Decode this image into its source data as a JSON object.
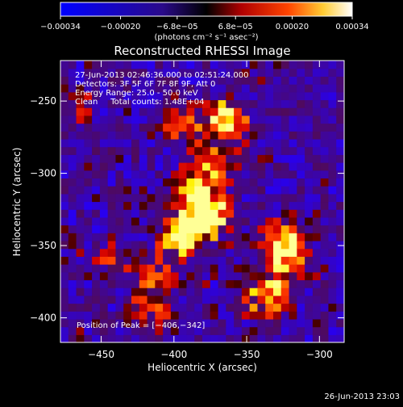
{
  "chart_data": {
    "type": "heatmap",
    "title": "Reconstructed RHESSI Image",
    "xlabel": "Heliocentric X (arcsec)",
    "ylabel": "Heliocentric Y (arcsec)",
    "xlim": [
      -478,
      -283
    ],
    "ylim": [
      -417,
      -222
    ],
    "xticks": [
      -450,
      -400,
      -350,
      -300
    ],
    "yticks": [
      -250,
      -300,
      -350,
      -400
    ],
    "colorbar": {
      "label": "(photons cm⁻² s⁻¹ asec⁻²)",
      "range": [
        -0.00034,
        0.00034
      ],
      "tick_values": [
        -0.00034,
        -0.0002,
        -6.8e-05,
        6.8e-05,
        0.0002,
        0.00034
      ],
      "tick_labels": [
        "−0.00034",
        "−0.00020",
        "−6.8e−05",
        "6.8e−05",
        "0.00020",
        "0.00034"
      ]
    },
    "annotations": [
      "27-Jun-2013 02:46:36.000 to 02:51:24.000",
      "Detectors: 3F 5F 6F 7F 8F 9F, Att 0",
      "Energy Range: 25.0 - 50.0 keV",
      "Clean     Total counts: 1.48E+04",
      "Position of Peak = [−406,−342]"
    ],
    "peak": {
      "x": -406,
      "y": -342
    },
    "footer_timestamp": "26-Jun-2013 23:03",
    "bright_regions": [
      {
        "x": -365,
        "y": -262,
        "relative_intensity": 0.95
      },
      {
        "x": -395,
        "y": -342,
        "relative_intensity": 1.0
      },
      {
        "x": -385,
        "y": -313,
        "relative_intensity": 0.8
      },
      {
        "x": -375,
        "y": -330,
        "relative_intensity": 0.85
      },
      {
        "x": -372,
        "y": -293,
        "relative_intensity": 0.7
      },
      {
        "x": -325,
        "y": -346,
        "relative_intensity": 0.8
      },
      {
        "x": -322,
        "y": -362,
        "relative_intensity": 0.65
      },
      {
        "x": -336,
        "y": -385,
        "relative_intensity": 0.85
      },
      {
        "x": -410,
        "y": -372,
        "relative_intensity": 0.6
      },
      {
        "x": -440,
        "y": -360,
        "relative_intensity": 0.4
      },
      {
        "x": -415,
        "y": -395,
        "relative_intensity": 0.45
      },
      {
        "x": -395,
        "y": -265,
        "relative_intensity": 0.45
      },
      {
        "x": -470,
        "y": -255,
        "relative_intensity": 0.3
      }
    ]
  }
}
